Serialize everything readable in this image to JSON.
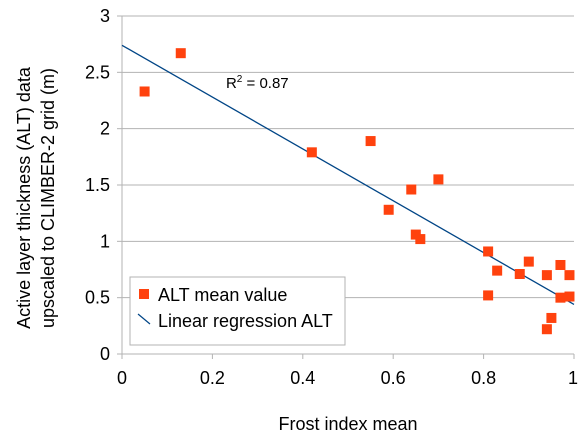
{
  "chart_data": {
    "type": "scatter",
    "title": "",
    "xlabel": "Frost index mean",
    "ylabel_lines": [
      "Active layer thickness (ALT) data",
      "upscaled to CLIMBER-2 grid (m)"
    ],
    "xlim": [
      0,
      1
    ],
    "ylim": [
      0,
      3
    ],
    "xticks": [
      0,
      0.2,
      0.4,
      0.6,
      0.8,
      1
    ],
    "xtick_labels": [
      "0",
      "0.2",
      "0.4",
      "0.6",
      "0.8",
      "1"
    ],
    "yticks": [
      0,
      0.5,
      1,
      1.5,
      2,
      2.5,
      3
    ],
    "ytick_labels": [
      "0",
      "0.5",
      "1",
      "1.5",
      "2",
      "2.5",
      "3"
    ],
    "grid": "horizontal",
    "legend_position": "bottom-left",
    "series": [
      {
        "name": "ALT mean value",
        "kind": "scatter",
        "marker": "square",
        "color": "#ff420e",
        "points": [
          {
            "x": 0.05,
            "y": 2.33
          },
          {
            "x": 0.13,
            "y": 2.67
          },
          {
            "x": 0.42,
            "y": 1.79
          },
          {
            "x": 0.55,
            "y": 1.89
          },
          {
            "x": 0.59,
            "y": 1.28
          },
          {
            "x": 0.64,
            "y": 1.46
          },
          {
            "x": 0.65,
            "y": 1.06
          },
          {
            "x": 0.66,
            "y": 1.02
          },
          {
            "x": 0.7,
            "y": 1.55
          },
          {
            "x": 0.81,
            "y": 0.91
          },
          {
            "x": 0.81,
            "y": 0.52
          },
          {
            "x": 0.83,
            "y": 0.74
          },
          {
            "x": 0.88,
            "y": 0.71
          },
          {
            "x": 0.9,
            "y": 0.82
          },
          {
            "x": 0.94,
            "y": 0.7
          },
          {
            "x": 0.94,
            "y": 0.22
          },
          {
            "x": 0.95,
            "y": 0.32
          },
          {
            "x": 0.97,
            "y": 0.79
          },
          {
            "x": 0.97,
            "y": 0.5
          },
          {
            "x": 0.99,
            "y": 0.7
          },
          {
            "x": 0.99,
            "y": 0.51
          }
        ]
      },
      {
        "name": "Linear regression ALT",
        "kind": "line",
        "color": "#004586",
        "points": [
          {
            "x": 0,
            "y": 2.74
          },
          {
            "x": 1,
            "y": 0.44
          }
        ]
      }
    ],
    "annotation": {
      "text_prefix": "R",
      "superscript": "2",
      "text_suffix": " = 0.87",
      "x": 0.23,
      "y": 2.36
    }
  }
}
